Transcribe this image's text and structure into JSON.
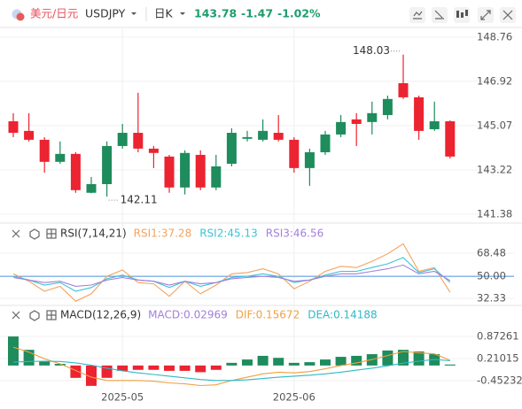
{
  "header": {
    "name": "美元/日元",
    "code": "USDJPY",
    "period": "日K",
    "price": "143.78",
    "change": "-1.47",
    "change_percent": "-1.02%"
  },
  "chart_data": [
    {
      "type": "candlestick",
      "categories": [
        null,
        null,
        null,
        null,
        null,
        null,
        null,
        "2025-05",
        null,
        null,
        null,
        null,
        null,
        null,
        null,
        null,
        null,
        null,
        "2025-06",
        null,
        null,
        null,
        null,
        null,
        null,
        null,
        null,
        null,
        null
      ],
      "open": [
        145.25,
        144.85,
        144.48,
        143.56,
        143.89,
        142.27,
        142.63,
        144.22,
        144.77,
        144.11,
        143.78,
        142.49,
        143.85,
        142.49,
        143.48,
        144.52,
        144.48,
        144.77,
        144.48,
        143.3,
        143.96,
        144.7,
        145.33,
        145.22,
        145.51,
        146.84,
        146.25,
        144.92,
        145.25
      ],
      "high": [
        145.59,
        145.59,
        144.59,
        144.41,
        143.96,
        142.93,
        144.41,
        145.14,
        146.44,
        144.22,
        143.85,
        144.04,
        144.04,
        143.85,
        144.96,
        144.85,
        145.33,
        145.51,
        144.59,
        144.11,
        144.85,
        145.51,
        145.59,
        146.07,
        146.32,
        148.03,
        146.32,
        146.07,
        145.29
      ],
      "low": [
        144.59,
        144.41,
        143.11,
        143.48,
        142.27,
        142.25,
        142.11,
        144.11,
        143.96,
        143.3,
        142.27,
        142.2,
        142.38,
        142.38,
        143.37,
        144.41,
        144.41,
        144.41,
        143.11,
        142.56,
        143.85,
        144.59,
        144.22,
        144.7,
        145.33,
        146.18,
        144.48,
        144.85,
        143.7
      ],
      "close": [
        144.77,
        144.48,
        143.56,
        143.89,
        142.38,
        142.63,
        144.22,
        144.77,
        144.11,
        143.93,
        142.49,
        143.93,
        142.49,
        143.37,
        144.77,
        144.59,
        144.85,
        144.48,
        143.3,
        143.96,
        144.7,
        145.22,
        145.14,
        145.59,
        146.18,
        146.25,
        144.85,
        145.25,
        143.78
      ],
      "up_color": "#1e8c5c",
      "down_color": "#ec2330",
      "annotations": [
        148.03,
        142.11
      ],
      "ylim": [
        141.08,
        149.2
      ],
      "yticks": [
        148.76,
        146.92,
        145.07,
        143.22,
        141.38
      ],
      "grid": true
    },
    {
      "type": "line",
      "title": "RSI(7,14,21)",
      "series": [
        {
          "name": "RSI1:37.28",
          "color": "#f5a25d",
          "values": [
            52,
            46,
            38,
            42,
            30,
            36,
            50,
            55,
            45,
            44,
            34,
            46,
            36,
            43,
            52,
            53,
            56,
            52,
            40,
            46,
            54,
            58,
            57,
            62,
            68,
            76,
            54,
            57,
            37.28
          ]
        },
        {
          "name": "RSI2:45.13",
          "color": "#3cc3d6",
          "values": [
            50,
            47,
            43,
            45,
            38,
            41,
            48,
            51,
            47,
            46,
            41,
            46,
            42,
            45,
            49,
            50,
            52,
            50,
            45,
            47,
            51,
            54,
            54,
            57,
            60,
            65,
            53,
            56,
            45.13
          ]
        },
        {
          "name": "RSI3:46.56",
          "color": "#a37fdc",
          "values": [
            49,
            47,
            45,
            46,
            42,
            43,
            47,
            49,
            47,
            46,
            43,
            46,
            44,
            45,
            48,
            49,
            50,
            49,
            46,
            47,
            50,
            52,
            52,
            54,
            56,
            59,
            52,
            54,
            46.56
          ]
        }
      ],
      "ylim": [
        26.7,
        78.4
      ],
      "yticks": [
        68.48,
        {
          "value": 50,
          "label": "50.00"
        },
        32.33
      ],
      "level_color": "#4a8fd9"
    },
    {
      "type": "combo",
      "title": "MACD(12,26,9)",
      "series": [
        {
          "name": "MACD:0.02969",
          "kind": "bar",
          "color": "#a37fdc",
          "up_color": "#1e8c5c",
          "down_color": "#ec2330",
          "values": [
            0.87,
            0.47,
            0.13,
            0.05,
            -0.37,
            -0.61,
            -0.37,
            -0.16,
            -0.13,
            -0.13,
            -0.16,
            -0.16,
            -0.2,
            -0.13,
            0.08,
            0.18,
            0.29,
            0.23,
            0.08,
            0.1,
            0.18,
            0.26,
            0.29,
            0.34,
            0.45,
            0.47,
            0.42,
            0.34,
            0.02969
          ]
        },
        {
          "name": "DIF:0.15672",
          "kind": "line",
          "color": "#f0a040",
          "values": [
            0.55,
            0.4,
            0.2,
            0.05,
            -0.15,
            -0.35,
            -0.45,
            -0.45,
            -0.45,
            -0.47,
            -0.52,
            -0.55,
            -0.6,
            -0.58,
            -0.45,
            -0.35,
            -0.25,
            -0.2,
            -0.22,
            -0.18,
            -0.1,
            0.0,
            0.08,
            0.18,
            0.3,
            0.42,
            0.38,
            0.35,
            0.15672
          ]
        },
        {
          "name": "DEA:0.14188",
          "kind": "line",
          "color": "#2fb8c8",
          "values": [
            0.1,
            0.12,
            0.13,
            0.12,
            0.08,
            0.01,
            -0.08,
            -0.16,
            -0.22,
            -0.27,
            -0.32,
            -0.37,
            -0.42,
            -0.45,
            -0.45,
            -0.43,
            -0.39,
            -0.35,
            -0.32,
            -0.29,
            -0.25,
            -0.2,
            -0.14,
            -0.08,
            -0.01,
            0.07,
            0.13,
            0.18,
            0.14188
          ]
        }
      ],
      "ylim": [
        -0.72,
        1.35
      ],
      "yticks": [
        0.87261,
        0.21015,
        -0.45232
      ]
    }
  ]
}
